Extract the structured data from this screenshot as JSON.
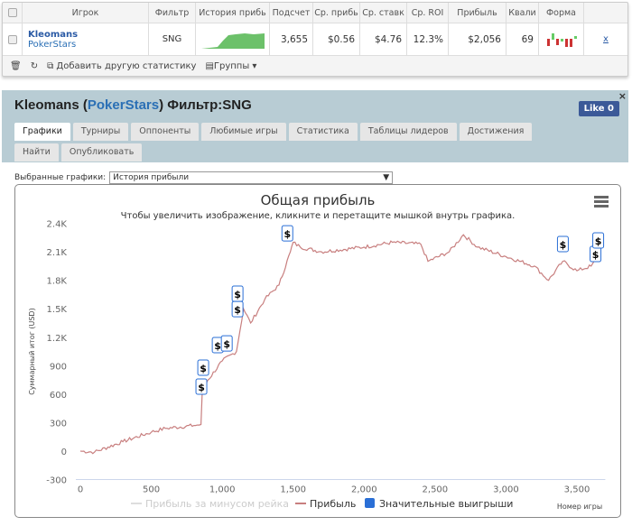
{
  "table": {
    "headers": [
      "Игрок",
      "Фильтр",
      "История прибь",
      "Подсчет",
      "Ср. прибь",
      "Ср. ставк",
      "Ср. ROI",
      "Прибыль",
      "Квали",
      "Форма"
    ],
    "row": {
      "player": "Kleomans",
      "site": "PokerStars",
      "filter": "SNG",
      "count": "3,655",
      "avg_profit": "$0.56",
      "avg_stake": "$4.76",
      "roi": "12.3%",
      "profit": "$2,056",
      "rating": "69",
      "remove": "x"
    },
    "tools": {
      "add_stat": "Добавить другую статистику",
      "groups": "Группы"
    }
  },
  "panel": {
    "player": "Kleomans",
    "site": "PokerStars",
    "filter_label": "Фильтр:SNG",
    "like": "Like 0",
    "close": "×",
    "tabs": [
      "Графики",
      "Турниры",
      "Оппоненты",
      "Любимые игры",
      "Статистика",
      "Таблицы лидеров",
      "Достижения",
      "Найти",
      "Опубликовать"
    ],
    "selected_label": "Выбранные графики:",
    "selected_value": "История прибыли"
  },
  "chart_data": {
    "type": "line",
    "title": "Общая прибыль",
    "subtitle": "Чтобы увеличить изображение, кликните и перетащите мышкой внутрь графика.",
    "xlabel": "Номер игры",
    "ylabel": "Суммарный итог (USD)",
    "xlim": [
      0,
      3700
    ],
    "ylim": [
      -300,
      2400
    ],
    "xticks": [
      "0",
      "500",
      "1,000",
      "1,500",
      "2,000",
      "2,500",
      "3,000",
      "3,500"
    ],
    "yticks": [
      "-300",
      "0",
      "300",
      "600",
      "900",
      "1.2K",
      "1.5K",
      "1.8K",
      "2.1K",
      "2.4K"
    ],
    "series": [
      {
        "name": "Прибыль",
        "color": "#c87f7f",
        "x": [
          0,
          100,
          300,
          500,
          600,
          800,
          850,
          860,
          900,
          1000,
          1100,
          1150,
          1200,
          1300,
          1400,
          1480,
          1500,
          1550,
          1700,
          2000,
          2200,
          2400,
          2450,
          2600,
          2700,
          2800,
          3000,
          3200,
          3300,
          3400,
          3500,
          3600,
          3655
        ],
        "y": [
          0,
          -10,
          100,
          200,
          240,
          270,
          280,
          650,
          750,
          950,
          1050,
          1500,
          1350,
          1600,
          1750,
          2100,
          2200,
          2150,
          2100,
          2150,
          2200,
          2180,
          2000,
          2100,
          2280,
          2150,
          2050,
          1950,
          1800,
          2000,
          1900,
          1950,
          2056
        ]
      }
    ],
    "big_wins": {
      "name": "Значительные выигрыши",
      "color": "#2a6fd6",
      "symbol": "$",
      "x": [
        853,
        866,
        968,
        1032,
        1108,
        1108,
        1459,
        3401,
        3631,
        3650
      ],
      "y": [
        675,
        875,
        1112,
        1130,
        1492,
        1654,
        2290,
        2177,
        2072,
        2215
      ]
    },
    "legend": [
      "Прибыль за минусом рейка",
      "Прибыль",
      "Значительные выигрыши"
    ],
    "legend_position": "bottom",
    "grid": false
  }
}
